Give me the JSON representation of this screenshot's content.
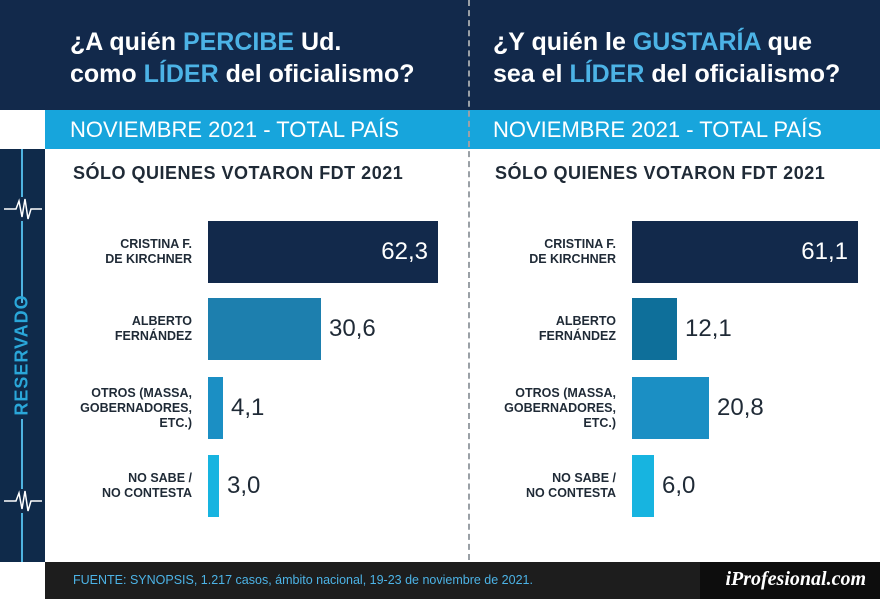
{
  "left": {
    "title_parts": [
      "¿A quién ",
      "PERCIBE",
      " Ud.",
      "como ",
      "LÍDER",
      " del oficialismo?"
    ],
    "period": "NOVIEMBRE 2021 - TOTAL PAÍS",
    "subtitle": "SÓLO QUIENES VOTARON FDT 2021"
  },
  "right": {
    "title_parts": [
      "¿Y quién le ",
      "GUSTARÍA",
      " que",
      "sea el ",
      "LÍDER",
      " del oficialismo?"
    ],
    "period": "NOVIEMBRE 2021 - TOTAL PAÍS",
    "subtitle": "SÓLO QUIENES VOTARON FDT 2021"
  },
  "side_label": "RESERVADO",
  "footer": {
    "source": "FUENTE: SYNOPSIS, 1.217 casos, ámbito nacional, 19-23 de noviembre de 2021.",
    "brand": "iProfesional.com"
  },
  "colors": {
    "navy": "#12294b",
    "blue": "#1d7fae",
    "cyan": "#17a5dc",
    "teal": "#0e6f9a"
  },
  "chart_data": [
    {
      "type": "bar",
      "orientation": "horizontal",
      "title": "¿A quién PERCIBE Ud. como LÍDER del oficialismo?",
      "categories": [
        "CRISTINA F.\nDE KIRCHNER",
        "ALBERTO\nFERNÁNDEZ",
        "OTROS  (MASSA,\nGOBERNADORES,\nETC.)",
        "NO SABE /\nNO CONTESTA"
      ],
      "values": [
        62.3,
        30.6,
        4.1,
        3.0
      ],
      "labels": [
        "62,3",
        "30,6",
        "4,1",
        "3,0"
      ],
      "bar_colors": [
        "#12294b",
        "#1d7fae",
        "#1b8fc4",
        "#17b4e0"
      ],
      "xlim": [
        0,
        62.3
      ]
    },
    {
      "type": "bar",
      "orientation": "horizontal",
      "title": "¿Y quién le GUSTARÍA que sea el LÍDER del oficialismo?",
      "categories": [
        "CRISTINA F.\nDE KIRCHNER",
        "ALBERTO\nFERNÁNDEZ",
        "OTROS  (MASSA,\nGOBERNADORES,\nETC.)",
        "NO SABE /\nNO CONTESTA"
      ],
      "values": [
        61.1,
        12.1,
        20.8,
        6.0
      ],
      "labels": [
        "61,1",
        "12,1",
        "20,8",
        "6,0"
      ],
      "bar_colors": [
        "#12294b",
        "#0e6f9a",
        "#1b8fc4",
        "#17b4e0"
      ],
      "xlim": [
        0,
        61.1
      ]
    }
  ]
}
